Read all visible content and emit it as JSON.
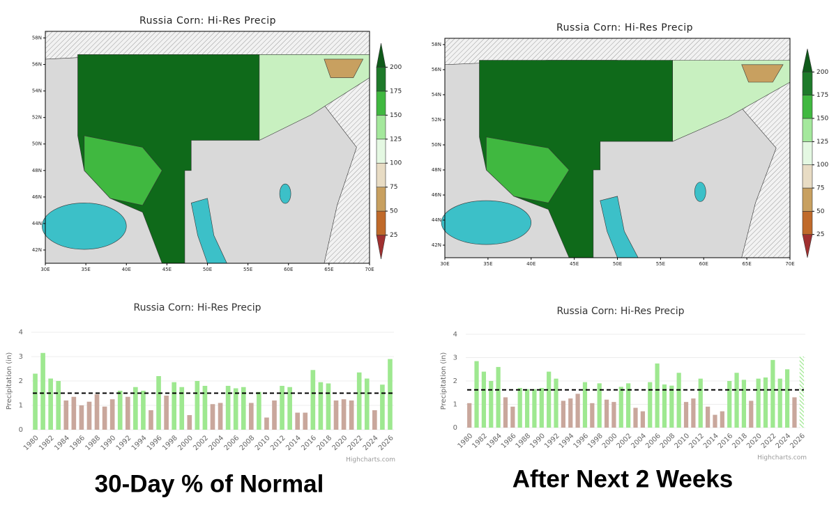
{
  "chart_data": [
    {
      "type": "map",
      "title": "Russia Corn: Hi-Res Precip",
      "xlim": [
        30,
        70
      ],
      "xticks": [
        {
          "value": 30,
          "label": "30E"
        },
        {
          "value": 35,
          "label": "35E"
        },
        {
          "value": 40,
          "label": "40E"
        },
        {
          "value": 45,
          "label": "45E"
        },
        {
          "value": 50,
          "label": "50E"
        },
        {
          "value": 55,
          "label": "55E"
        },
        {
          "value": 60,
          "label": "60E"
        },
        {
          "value": 65,
          "label": "65E"
        },
        {
          "value": 70,
          "label": "70E"
        }
      ],
      "ylim": [
        41,
        58.5
      ],
      "yticks": [
        {
          "value": 42,
          "label": "42N"
        },
        {
          "value": 44,
          "label": "44N"
        },
        {
          "value": 46,
          "label": "46N"
        },
        {
          "value": 48,
          "label": "48N"
        },
        {
          "value": 50,
          "label": "50N"
        },
        {
          "value": 52,
          "label": "52N"
        },
        {
          "value": 54,
          "label": "54N"
        },
        {
          "value": 56,
          "label": "56N"
        },
        {
          "value": 58,
          "label": "58N"
        }
      ],
      "colorbar": {
        "ticks": [
          25,
          50,
          75,
          100,
          125,
          150,
          175,
          200
        ],
        "colors": [
          "#a03030",
          "#c06a2a",
          "#c8a060",
          "#e8dcc4",
          "#e4f8e2",
          "#a4e89c",
          "#40b840",
          "#1e7a2a",
          "#0f5a1a"
        ]
      }
    },
    {
      "type": "map",
      "title": "Russia Corn: Hi-Res Precip",
      "xlim": [
        30,
        70
      ],
      "xticks": [
        {
          "value": 30,
          "label": "30E"
        },
        {
          "value": 35,
          "label": "35E"
        },
        {
          "value": 40,
          "label": "40E"
        },
        {
          "value": 45,
          "label": "45E"
        },
        {
          "value": 50,
          "label": "50E"
        },
        {
          "value": 55,
          "label": "55E"
        },
        {
          "value": 60,
          "label": "60E"
        },
        {
          "value": 65,
          "label": "65E"
        },
        {
          "value": 70,
          "label": "70E"
        }
      ],
      "ylim": [
        41,
        58.5
      ],
      "yticks": [
        {
          "value": 42,
          "label": "42N"
        },
        {
          "value": 44,
          "label": "44N"
        },
        {
          "value": 46,
          "label": "46N"
        },
        {
          "value": 48,
          "label": "48N"
        },
        {
          "value": 50,
          "label": "50N"
        },
        {
          "value": 52,
          "label": "52N"
        },
        {
          "value": 54,
          "label": "54N"
        },
        {
          "value": 56,
          "label": "56N"
        },
        {
          "value": 58,
          "label": "58N"
        }
      ],
      "colorbar": {
        "ticks": [
          25,
          50,
          75,
          100,
          125,
          150,
          175,
          200
        ],
        "colors": [
          "#a03030",
          "#c06a2a",
          "#c8a060",
          "#e8dcc4",
          "#e4f8e2",
          "#a4e89c",
          "#40b840",
          "#1e7a2a",
          "#0f5a1a"
        ]
      }
    },
    {
      "type": "bar",
      "title": "Russia Corn: Hi-Res Precip",
      "y_label": "Precipitation (in)",
      "categories": [
        "1980",
        null,
        "1982",
        null,
        "1984",
        null,
        "1986",
        null,
        "1988",
        null,
        "1990",
        null,
        "1992",
        null,
        "1994",
        null,
        "1996",
        null,
        "1998",
        null,
        "2000",
        null,
        "2002",
        null,
        "2004",
        null,
        "2006",
        null,
        "2008",
        null,
        "2010",
        null,
        "2012",
        null,
        "2014",
        null,
        "2016",
        null,
        "2018",
        null,
        "2020",
        null,
        "2022",
        null,
        "2024",
        null,
        "2026"
      ],
      "values": [
        2.3,
        3.15,
        2.1,
        2.0,
        1.2,
        1.35,
        1.0,
        1.15,
        1.45,
        0.95,
        1.25,
        1.6,
        1.35,
        1.75,
        1.6,
        0.8,
        2.2,
        1.4,
        1.95,
        1.75,
        0.6,
        2.0,
        1.8,
        1.05,
        1.1,
        1.8,
        1.7,
        1.75,
        1.1,
        1.55,
        0.5,
        1.2,
        1.8,
        1.75,
        0.7,
        0.7,
        2.45,
        1.95,
        1.9,
        1.2,
        1.25,
        1.2,
        2.35,
        2.1,
        0.8,
        1.85,
        2.9
      ],
      "ylim": [
        0,
        4
      ],
      "yticks": [
        0,
        1,
        2,
        3,
        4
      ],
      "grid": true,
      "normal": 1.5,
      "above_color": "#9ee890",
      "below_color": "#c9a79c",
      "credit": "Highcharts.com",
      "caption": "30-Day % of Normal"
    },
    {
      "type": "bar",
      "title": "Russia Corn: Hi-Res Precip",
      "y_label": "Precipitation (in)",
      "categories": [
        "1980",
        null,
        "1982",
        null,
        "1984",
        null,
        "1986",
        null,
        "1988",
        null,
        "1990",
        null,
        "1992",
        null,
        "1994",
        null,
        "1996",
        null,
        "1998",
        null,
        "2000",
        null,
        "2002",
        null,
        "2004",
        null,
        "2006",
        null,
        "2008",
        null,
        "2010",
        null,
        "2012",
        null,
        "2014",
        null,
        "2016",
        null,
        "2018",
        null,
        "2020",
        null,
        "2022",
        null,
        "2024",
        null,
        "2026"
      ],
      "values": [
        1.05,
        2.85,
        2.4,
        2.0,
        2.6,
        1.3,
        0.9,
        1.7,
        1.65,
        1.65,
        1.7,
        2.4,
        2.1,
        1.15,
        1.25,
        1.45,
        1.95,
        1.05,
        1.9,
        1.2,
        1.1,
        1.75,
        1.9,
        0.85,
        0.7,
        1.95,
        2.75,
        1.85,
        1.8,
        2.35,
        1.1,
        1.25,
        2.1,
        0.9,
        0.55,
        0.7,
        2.0,
        2.35,
        2.05,
        1.15,
        2.1,
        2.15,
        2.9,
        2.1,
        2.5,
        1.3,
        3.05
      ],
      "ylim": [
        0,
        4
      ],
      "yticks": [
        0,
        1,
        2,
        3,
        4
      ],
      "grid": true,
      "normal": 1.62,
      "above_color": "#9ee890",
      "below_color": "#c9a79c",
      "hatch_last": true,
      "credit": "Highcharts.com",
      "caption": "After Next 2 Weeks"
    }
  ]
}
